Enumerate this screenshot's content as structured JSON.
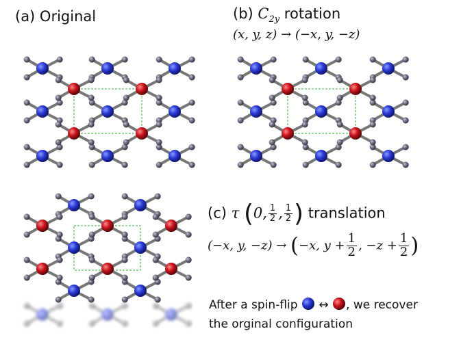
{
  "panels": [
    {
      "label": "(a) Original"
    },
    {
      "label": "(b)",
      "operator": "C",
      "operator_subscript": "2y",
      "operation": "rotation",
      "mapping": "(x, y, z) → (−x, y, −z)"
    },
    {
      "label": "(c)",
      "operator": "τ",
      "args_open": "0,",
      "frac_1": {
        "numerator": "1",
        "denominator": "2"
      },
      "args_sep": ",",
      "frac_2": {
        "numerator": "1",
        "denominator": "2"
      },
      "operation": "translation",
      "mapping_left": "(−x, y, −z) → ",
      "mapping_right_1": "−x, y +",
      "frac_3": {
        "numerator": "1",
        "denominator": "2"
      },
      "mapping_right_2": ", −z +",
      "frac_4": {
        "numerator": "1",
        "denominator": "2"
      }
    }
  ],
  "caption": {
    "text_1": "After a spin-flip",
    "symbol": "↔",
    "text_2": ", we recover",
    "line_2": "the orginal configuration"
  }
}
